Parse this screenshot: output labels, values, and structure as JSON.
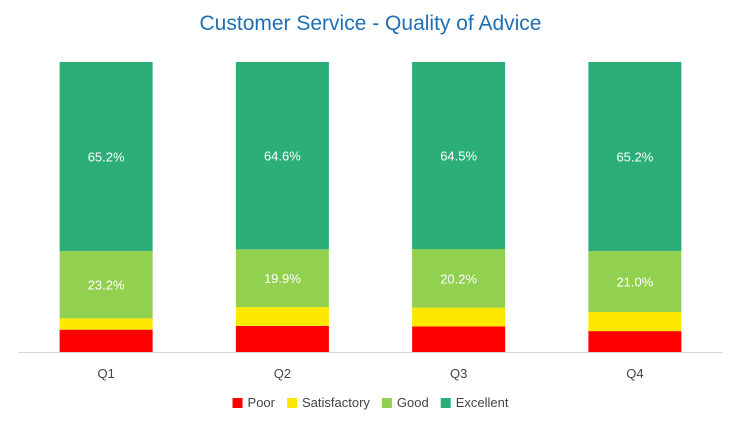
{
  "chart_data": {
    "type": "bar",
    "stacked": true,
    "title": "Customer Service - Quality of Advice",
    "categories": [
      "Q1",
      "Q2",
      "Q3",
      "Q4"
    ],
    "series": [
      {
        "name": "Poor",
        "color": "#ff0000",
        "values": [
          7.7,
          9.0,
          8.8,
          7.2
        ]
      },
      {
        "name": "Satisfactory",
        "color": "#ffe800",
        "values": [
          3.9,
          6.5,
          6.5,
          6.6
        ]
      },
      {
        "name": "Good",
        "color": "#92d050",
        "values": [
          23.2,
          19.9,
          20.2,
          21.0
        ]
      },
      {
        "name": "Excellent",
        "color": "#2bae78",
        "values": [
          65.2,
          64.6,
          64.5,
          65.2
        ]
      }
    ],
    "data_labels": [
      {
        "series": "Good",
        "labels": [
          "23.2%",
          "19.9%",
          "20.2%",
          "21.0%"
        ]
      },
      {
        "series": "Excellent",
        "labels": [
          "65.2%",
          "64.6%",
          "64.5%",
          "65.2%"
        ]
      }
    ],
    "ylim": [
      0,
      100
    ],
    "legend_position": "bottom",
    "grid": false
  }
}
